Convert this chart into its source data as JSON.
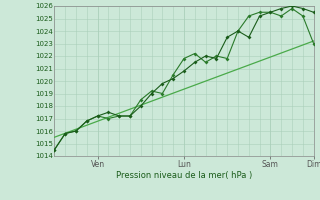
{
  "title": "",
  "xlabel": "Pression niveau de la mer( hPa )",
  "ylim": [
    1014,
    1026
  ],
  "yticks": [
    1014,
    1015,
    1016,
    1017,
    1018,
    1019,
    1020,
    1021,
    1022,
    1023,
    1024,
    1025,
    1026
  ],
  "bg_color": "#cce8d8",
  "grid_color": "#aacfba",
  "line_color_dark": "#1a5c1a",
  "line_color_mid": "#2a7a2a",
  "line_color_light": "#4aaa4a",
  "series1": {
    "x": [
      0,
      6,
      12,
      18,
      24,
      30,
      36,
      42,
      48,
      54,
      60,
      66,
      72,
      78,
      84,
      90,
      96,
      102,
      108,
      114,
      120,
      126,
      132,
      138,
      144
    ],
    "y": [
      1014.5,
      1015.8,
      1016.0,
      1016.8,
      1017.2,
      1017.5,
      1017.2,
      1017.2,
      1018.0,
      1019.0,
      1019.8,
      1020.2,
      1020.8,
      1021.5,
      1022.0,
      1021.8,
      1023.5,
      1024.0,
      1023.5,
      1025.2,
      1025.5,
      1025.8,
      1026.0,
      1025.8,
      1025.5
    ]
  },
  "series2": {
    "x": [
      0,
      6,
      12,
      18,
      24,
      30,
      36,
      42,
      48,
      54,
      60,
      66,
      72,
      78,
      84,
      90,
      96,
      102,
      108,
      114,
      120,
      126,
      132,
      138,
      144
    ],
    "y": [
      1014.5,
      1015.8,
      1016.0,
      1016.8,
      1017.2,
      1017.0,
      1017.2,
      1017.2,
      1018.5,
      1019.2,
      1019.0,
      1020.5,
      1021.8,
      1022.2,
      1021.5,
      1022.0,
      1021.8,
      1024.0,
      1025.2,
      1025.5,
      1025.5,
      1025.2,
      1025.8,
      1025.2,
      1023.0
    ]
  },
  "series_straight": {
    "x": [
      0,
      144
    ],
    "y": [
      1015.5,
      1023.2
    ]
  },
  "day_positions": [
    24,
    72,
    120,
    144
  ],
  "day_labels": [
    "Ven",
    "Lun",
    "Sam",
    "Dim"
  ],
  "figsize": [
    3.2,
    2.0
  ],
  "dpi": 100
}
